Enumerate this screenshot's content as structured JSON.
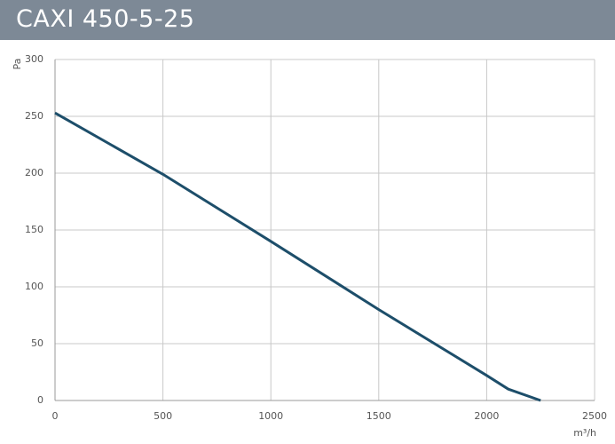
{
  "chart_data": {
    "type": "line",
    "title": "CAXI 450-5-25",
    "x_label": "m³/h",
    "y_label": "Pa",
    "x": [
      0,
      500,
      1000,
      1500,
      2000,
      2100,
      2250
    ],
    "series": [
      {
        "color": "#1d4e6a",
        "values": [
          253,
          199,
          140,
          80,
          22,
          10,
          0
        ]
      }
    ],
    "xlim": [
      0,
      2500
    ],
    "xticks": [
      0,
      500,
      1000,
      1500,
      2000,
      2500
    ],
    "ylim": [
      0,
      300
    ],
    "yticks": [
      0,
      50,
      100,
      150,
      200,
      250,
      300
    ],
    "grid": true
  }
}
